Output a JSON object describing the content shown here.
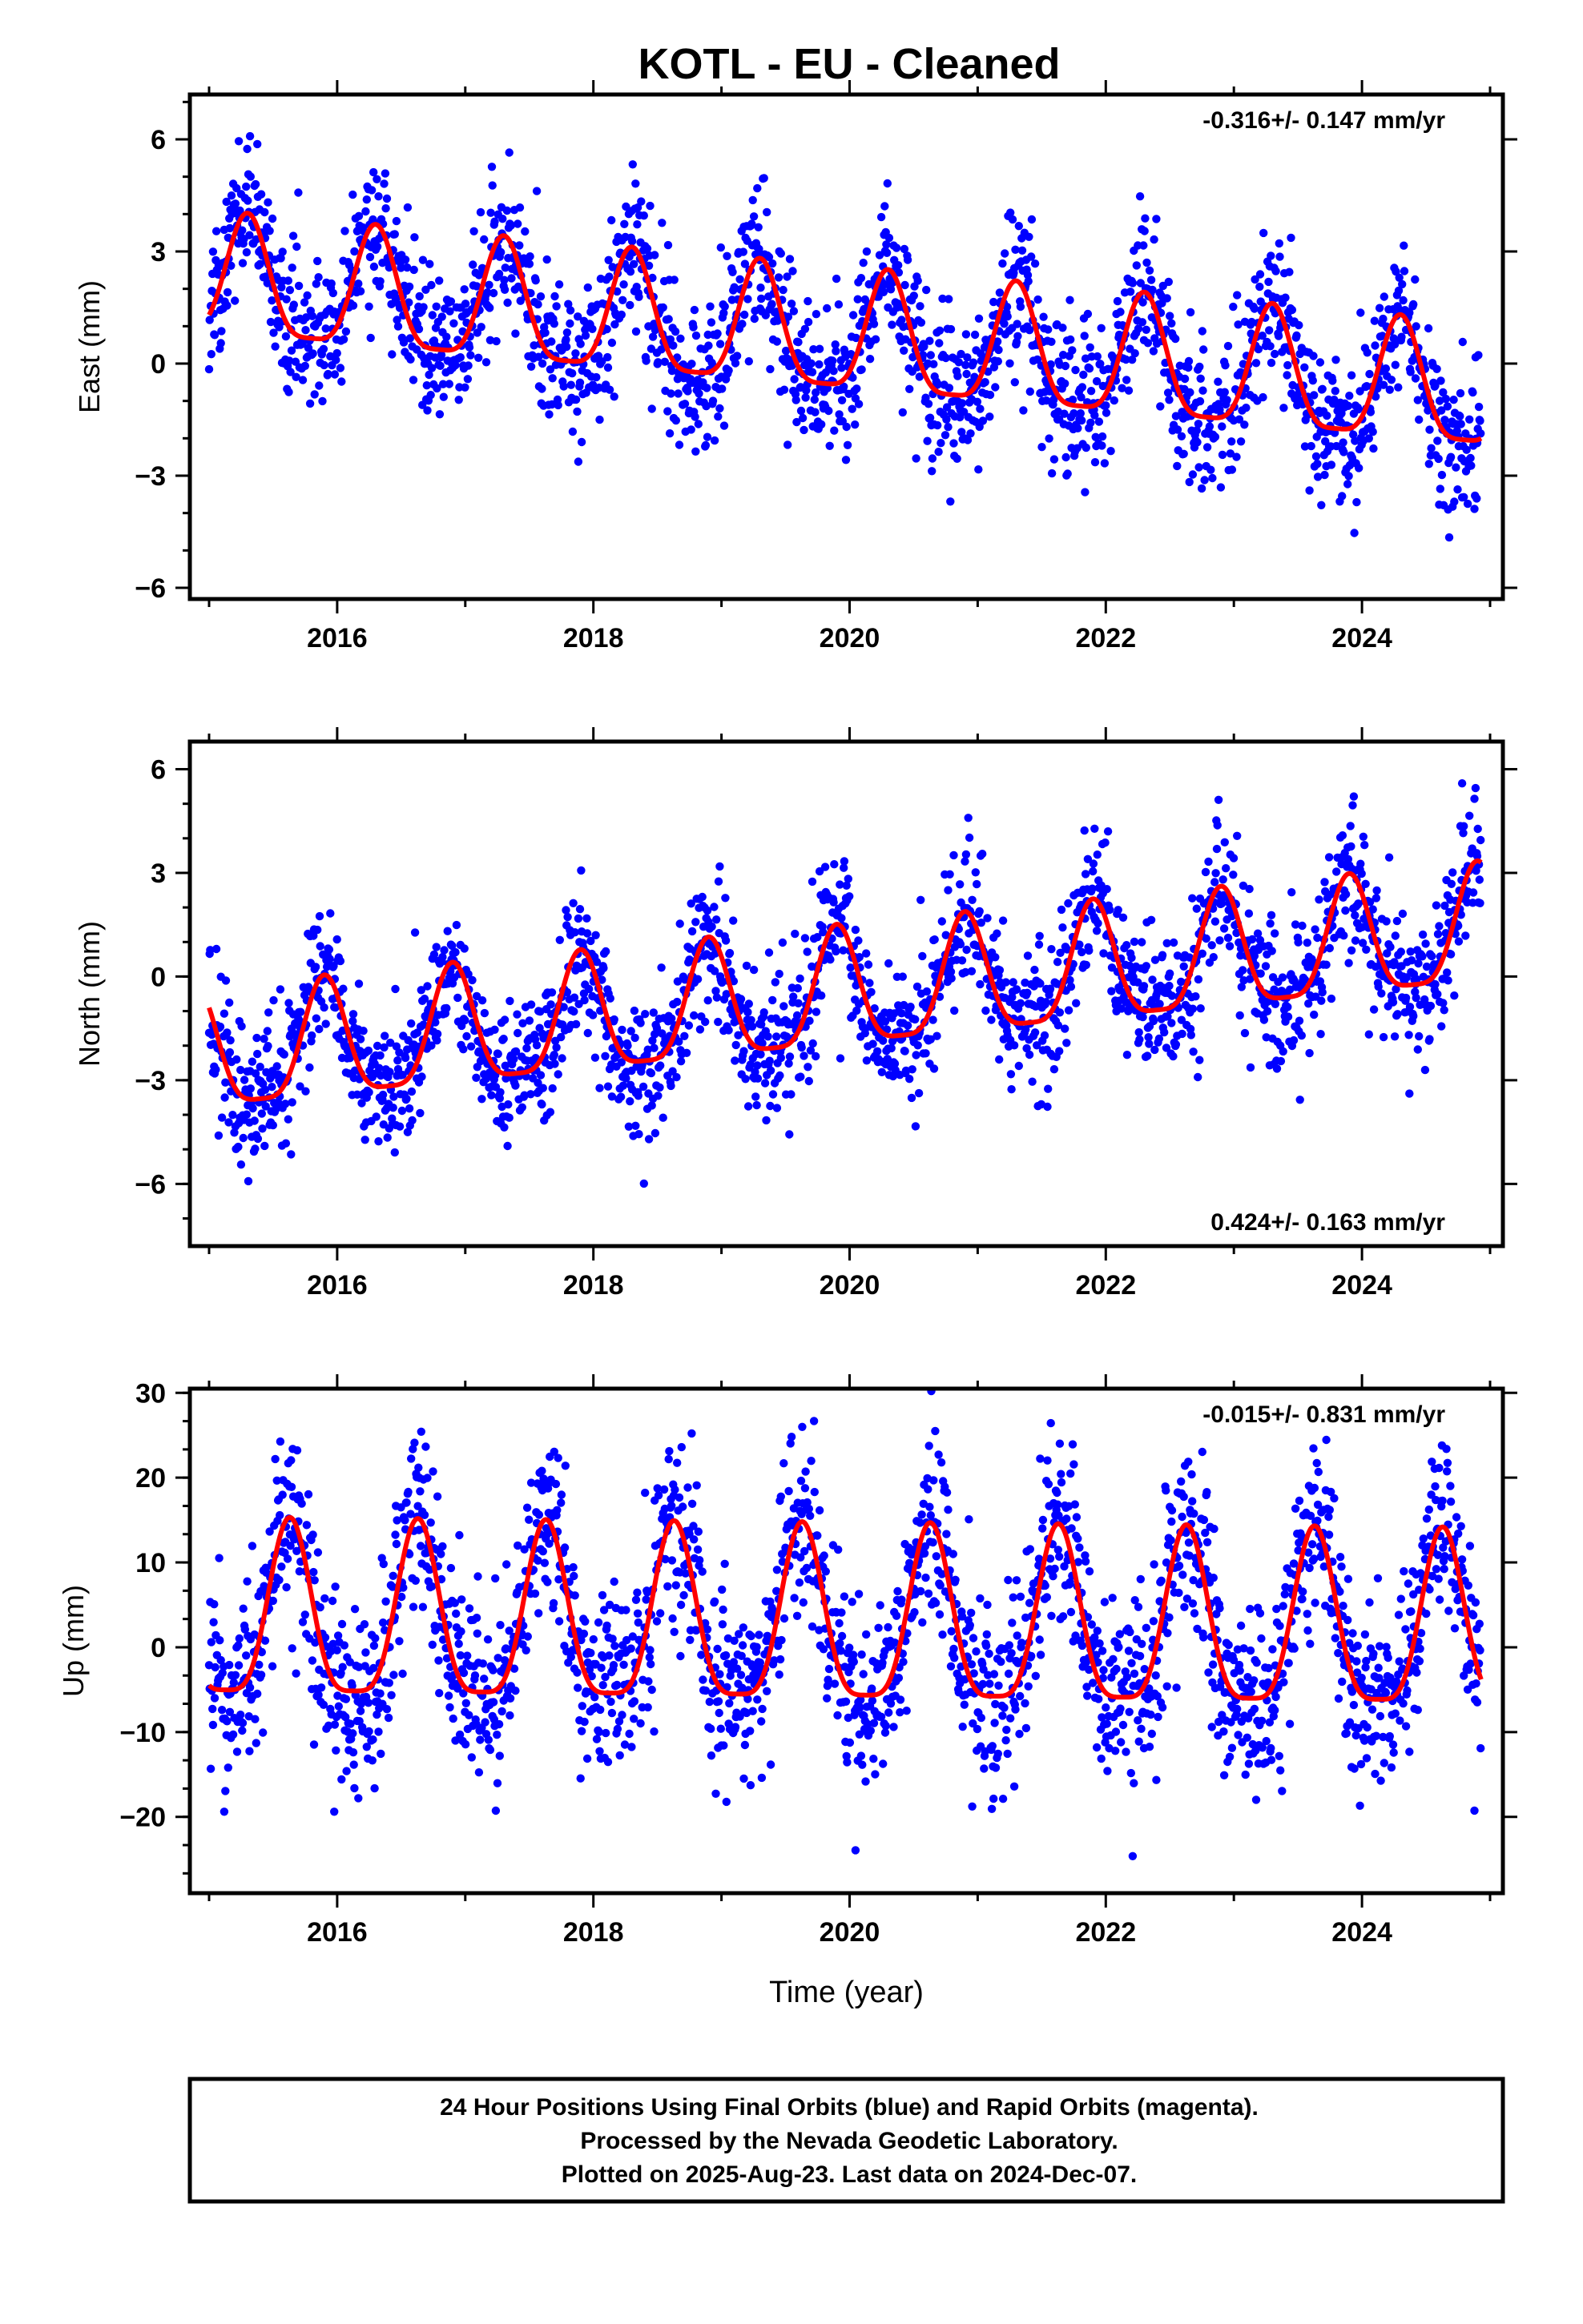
{
  "title": "KOTL  - EU - Cleaned",
  "footer": {
    "lines": [
      "24 Hour Positions Using Final Orbits (blue) and Rapid Orbits (magenta).",
      "Processed by the Nevada Geodetic Laboratory.",
      "Plotted on 2025-Aug-23. Last data on 2024-Dec-07."
    ]
  },
  "colors": {
    "final_orbits": "#0000ff",
    "model_fit": "#ff0000",
    "frame": "#000000"
  },
  "chart_data": [
    {
      "type": "scatter",
      "ylabel": "East (mm)",
      "xlabel": "",
      "xlim": [
        2014.85,
        2025.1
      ],
      "ylim": [
        -6.3,
        7.2
      ],
      "xticks": [
        2016,
        2018,
        2020,
        2022,
        2024
      ],
      "yticks": [
        -6,
        -3,
        0,
        3,
        6
      ],
      "ytick_labels": [
        "−6",
        "−3",
        "0",
        "3",
        "6"
      ],
      "rate_label": "-0.316+/- 0.147 mm/yr",
      "rate_position": "top-right",
      "trend": -0.316,
      "amplitude": 1.6,
      "peak_phase": 0.3,
      "offset": 2.8,
      "scatter_sd": 1.0,
      "fit_first_value": 1.3,
      "fit_last_value": -2.0,
      "data_start": 2015.0,
      "data_end": 2024.93,
      "series": [
        {
          "name": "Final Orbits",
          "style": "points"
        },
        {
          "name": "Model fit",
          "style": "line"
        }
      ]
    },
    {
      "type": "scatter",
      "ylabel": "North (mm)",
      "xlabel": "",
      "xlim": [
        2014.85,
        2025.1
      ],
      "ylim": [
        -7.8,
        6.8
      ],
      "xticks": [
        2016,
        2018,
        2020,
        2022,
        2024
      ],
      "yticks": [
        -6,
        -3,
        0,
        3,
        6
      ],
      "ytick_labels": [
        "−6",
        "−3",
        "0",
        "3",
        "6"
      ],
      "rate_label": "0.424+/- 0.163 mm/yr",
      "rate_position": "bottom-right",
      "trend": 0.424,
      "amplitude": 1.7,
      "peak_phase": 0.9,
      "offset": -3.0,
      "scatter_sd": 1.0,
      "fit_first_value": -0.9,
      "fit_last_value": 3.3,
      "data_start": 2015.0,
      "data_end": 2024.93,
      "series": [
        {
          "name": "Final Orbits",
          "style": "points"
        },
        {
          "name": "Model fit",
          "style": "line"
        }
      ]
    },
    {
      "type": "scatter",
      "ylabel": "Up (mm)",
      "xlabel": "Time (year)",
      "xlim": [
        2014.85,
        2025.1
      ],
      "ylim": [
        -29,
        30.5
      ],
      "xticks": [
        2016,
        2018,
        2020,
        2022,
        2024
      ],
      "yticks": [
        -20,
        -10,
        0,
        10,
        20,
        30
      ],
      "ytick_labels": [
        "−20",
        "−10",
        "0",
        "10",
        "20",
        "30"
      ],
      "rate_label": "-0.015+/- 0.831 mm/yr",
      "rate_position": "top-right",
      "trend": -0.015,
      "amplitude": 10.2,
      "peak_phase": 0.63,
      "offset": 0.0,
      "scatter_sd": 5.5,
      "fit_first_value": -4.5,
      "fit_last_value": -3.8,
      "data_start": 2015.0,
      "data_end": 2024.93,
      "series": [
        {
          "name": "Final Orbits",
          "style": "points"
        },
        {
          "name": "Model fit",
          "style": "line"
        }
      ]
    }
  ]
}
